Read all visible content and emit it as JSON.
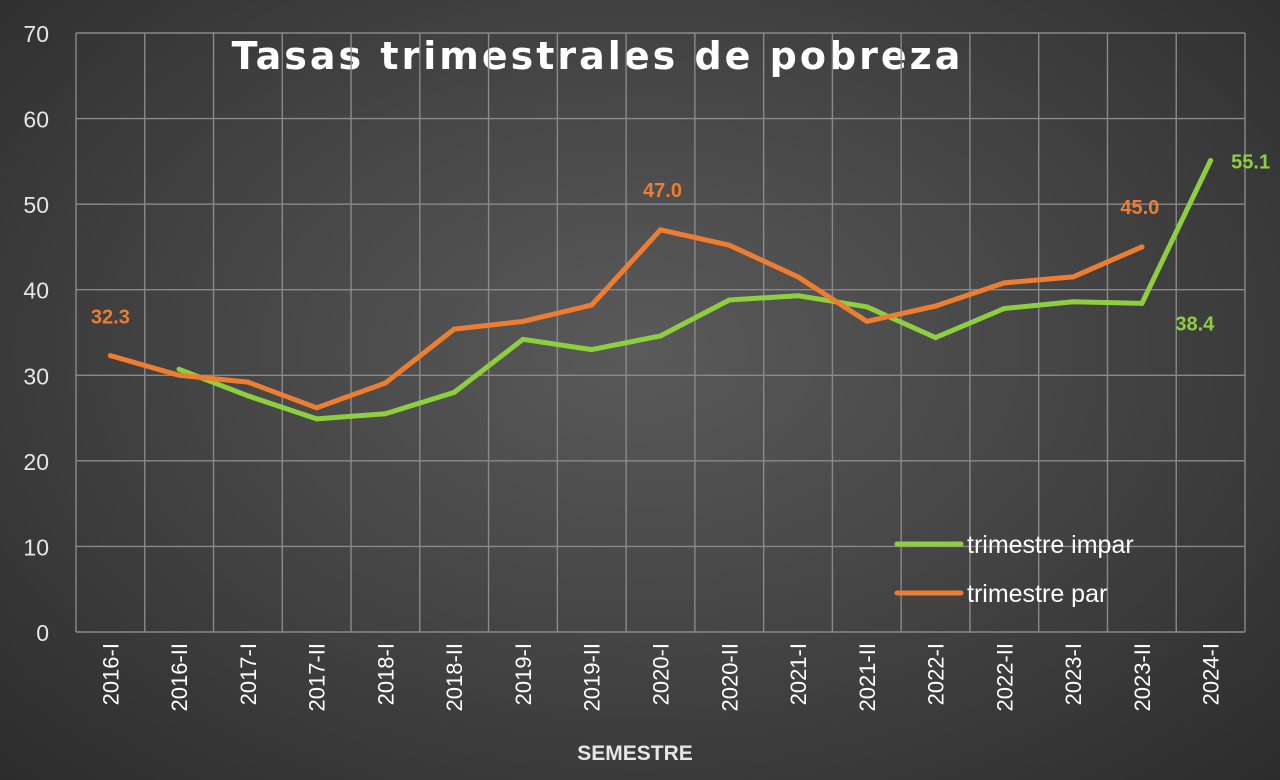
{
  "chart_data": {
    "type": "line",
    "title": "Tasas trimestrales de pobreza",
    "xlabel": "SEMESTRE",
    "ylabel": "",
    "ylim": [
      0,
      70
    ],
    "yticks": [
      "0",
      "10",
      "20",
      "30",
      "40",
      "50",
      "60",
      "70"
    ],
    "categories": [
      "2016-I",
      "2016-II",
      "2017-I",
      "2017-II",
      "2018-I",
      "2018-II",
      "2019-I",
      "2019-II",
      "2020-I",
      "2020-II",
      "2021-I",
      "2021-II",
      "2022-I",
      "2022-II",
      "2023-I",
      "2023-II",
      "2024-I"
    ],
    "grid": true,
    "legend_position": "bottom-right",
    "series": [
      {
        "name": "trimestre impar",
        "color": "#8dcf3f",
        "values": [
          null,
          30.7,
          27.6,
          24.9,
          25.5,
          28.0,
          34.2,
          33.0,
          34.6,
          38.8,
          39.3,
          38.0,
          34.4,
          37.8,
          38.6,
          38.4,
          55.1
        ],
        "labels": [
          {
            "index": 15,
            "text": "38.4"
          },
          {
            "index": 16,
            "text": "55.1"
          }
        ]
      },
      {
        "name": "trimestre par",
        "color": "#ed7d31",
        "values": [
          32.3,
          30.0,
          29.2,
          26.2,
          29.1,
          35.4,
          36.3,
          38.2,
          47.0,
          45.2,
          41.5,
          36.3,
          38.1,
          40.8,
          41.5,
          45.0,
          null
        ],
        "labels": [
          {
            "index": 0,
            "text": "32.3"
          },
          {
            "index": 8,
            "text": "47.0"
          },
          {
            "index": 15,
            "text": "45.0"
          }
        ]
      }
    ]
  }
}
